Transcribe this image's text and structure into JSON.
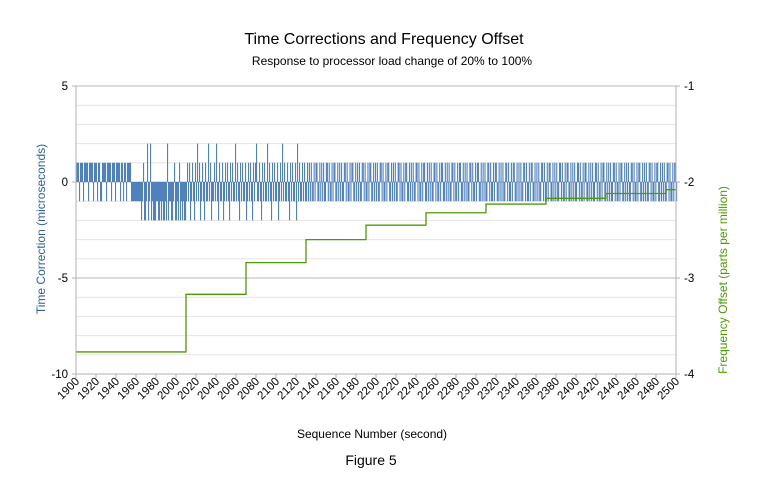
{
  "chart_data": {
    "type": "bar+line",
    "title": "Time Corrections and Frequency Offset",
    "subtitle": "Response to processor load change of 20% to 100%",
    "xlabel": "Sequence Number (second)",
    "ylabel_left": "Time Correction (microseconds)",
    "ylabel_right": "Frequency Offset (parts per million)",
    "caption": "Figure 5",
    "xlim": [
      1900,
      2500
    ],
    "ylim_left": [
      -10,
      5
    ],
    "ylim_right": [
      -4,
      -1
    ],
    "left_ticks": [
      5,
      0,
      -5,
      -10
    ],
    "right_ticks": [
      -1,
      -2,
      -3,
      -4
    ],
    "x_ticks": [
      1900,
      1920,
      1940,
      1960,
      1980,
      2000,
      2020,
      2040,
      2060,
      2080,
      2100,
      2120,
      2140,
      2160,
      2180,
      2200,
      2220,
      2240,
      2260,
      2280,
      2300,
      2320,
      2340,
      2360,
      2380,
      2400,
      2420,
      2440,
      2460,
      2480,
      2500
    ],
    "grid": true,
    "colors": {
      "time_correction": "#4f81bd",
      "frequency_offset": "#4e9a06",
      "grid": "#c0c0c0",
      "right_axis_title": "#4e9a06",
      "left_axis_title": "#2e5f98"
    },
    "series": [
      {
        "name": "Time Correction",
        "type": "bar",
        "axis": "left",
        "pattern_note_x": [
          1900,
          2500
        ],
        "segments": [
          {
            "start": 1900,
            "end": 1955,
            "values": [
              1,
              1,
              1,
              -1,
              1,
              1,
              1,
              -1,
              1,
              1,
              1,
              1,
              -1,
              1,
              1,
              1,
              1,
              -1,
              1,
              1,
              1,
              -1,
              1,
              1,
              -1,
              -1,
              1,
              1,
              1,
              1,
              -1,
              1,
              1,
              1,
              1,
              -1,
              1,
              1,
              1,
              -1,
              1,
              1,
              1,
              1,
              -1,
              1,
              1,
              -1,
              1,
              1,
              -1,
              1,
              1,
              1,
              1,
              -1
            ]
          },
          {
            "start": 1956,
            "end": 2010,
            "values": [
              -1,
              -1,
              -1,
              -1,
              -1,
              -1,
              -1,
              -1,
              -1,
              -2,
              -1,
              1,
              -2,
              -2,
              -1,
              2,
              -2,
              -1,
              2,
              -2,
              -1,
              -2,
              -2,
              -2,
              -1,
              -1,
              -2,
              -2,
              -1,
              -2,
              -1,
              -2,
              -2,
              -1,
              -2,
              2,
              -2,
              -1,
              -1,
              -2,
              -2,
              -1,
              1,
              -2,
              -2,
              -1,
              -2,
              1,
              -2,
              -1,
              -2,
              -1,
              -2,
              -2,
              -1
            ]
          },
          {
            "start": 2011,
            "end": 2130,
            "values": [
              1,
              -1,
              1,
              -2,
              -1,
              1,
              -1,
              -2,
              1,
              -1,
              2,
              -1,
              1,
              -2,
              -1,
              1,
              -1,
              -2,
              1,
              -1,
              -1,
              2,
              -1,
              1,
              -2,
              -1,
              -1,
              1,
              -1,
              2,
              -1,
              -2,
              1,
              -1,
              -1,
              1,
              -2,
              -1,
              1,
              -1,
              1,
              -1,
              -2,
              1,
              -1,
              1,
              -1,
              -1,
              2,
              -1,
              1,
              -1,
              -2,
              1,
              -1,
              1,
              -1,
              -1,
              1,
              -2,
              -1,
              1,
              -1,
              1,
              -1,
              -2,
              1,
              -1,
              1,
              2,
              -1,
              -1,
              1,
              -1,
              -2,
              1,
              -1,
              1,
              -1,
              -1,
              2,
              -1,
              1,
              -1,
              -2,
              1,
              -1,
              1,
              -1,
              -1,
              1,
              -2,
              -1,
              1,
              -1,
              2,
              -1,
              1,
              -1,
              -1,
              1,
              -1,
              -2,
              1,
              -1,
              1,
              -1,
              -1,
              1,
              -2,
              2,
              -1,
              1,
              -1,
              -1,
              1,
              -1,
              1,
              -1,
              -1
            ]
          },
          {
            "start": 2131,
            "end": 2500,
            "values": [
              1,
              -1,
              1,
              -1,
              1,
              -1,
              -1,
              1,
              -1,
              1,
              1,
              -1,
              -1,
              1,
              -1,
              1,
              -1,
              1,
              -1,
              -1,
              1,
              1,
              -1,
              1,
              -1,
              -1,
              1,
              -1,
              1,
              1,
              -1,
              -1,
              1,
              -1,
              1,
              -1,
              1,
              -1,
              -1,
              1,
              1,
              -1,
              1,
              -1,
              -1,
              1,
              -1,
              1,
              1,
              -1,
              -1,
              1,
              -1,
              1,
              -1,
              1,
              -1,
              -1,
              1,
              1,
              -1,
              1,
              -1,
              -1,
              1,
              -1,
              1,
              1,
              -1,
              -1,
              1,
              -1,
              1,
              -1,
              1,
              -1,
              -1,
              1,
              1,
              -1,
              1,
              -1,
              -1,
              1,
              -1,
              1,
              1,
              -1,
              -1,
              1,
              -1,
              1,
              -1,
              1,
              -1,
              -1,
              1,
              1,
              -1,
              1,
              -1,
              -1,
              1,
              -1,
              1,
              1,
              -1,
              -1,
              1,
              -1,
              1,
              -1,
              1,
              -1,
              -1,
              1,
              1,
              -1,
              1,
              -1,
              -1,
              1,
              -1,
              1,
              1,
              -1,
              -1,
              1,
              -1,
              1,
              -1,
              1,
              -1,
              -1,
              1,
              1,
              -1,
              1,
              -1,
              -1,
              1,
              -1,
              1,
              1,
              -1,
              -1,
              1,
              -1,
              1,
              -1,
              1,
              -1,
              -1,
              1,
              1,
              -1,
              1,
              -1,
              -1,
              1,
              -1,
              1,
              1,
              -1,
              -1,
              1,
              -1,
              1,
              -1,
              1,
              -1,
              -1,
              1,
              1,
              -1,
              1,
              -1,
              -1,
              1,
              -1,
              1,
              1,
              -1,
              -1,
              1,
              -1,
              1,
              -1,
              1,
              -1,
              -1,
              1,
              1,
              -1,
              1,
              -1,
              -1,
              1,
              -1,
              1,
              1,
              -1,
              -1,
              1,
              -1,
              1,
              -1,
              1,
              -1,
              -1,
              1,
              1,
              -1,
              1,
              -1,
              -1,
              1,
              -1,
              1,
              1,
              -1,
              -1,
              1,
              -1,
              1,
              -1,
              1,
              -1,
              -1,
              1,
              1,
              -1,
              1,
              -1,
              -1,
              1,
              -1,
              1,
              1,
              -1,
              -1,
              1,
              -1,
              1,
              -1,
              1,
              -1,
              -1,
              1,
              1,
              -1,
              1,
              -1,
              -1,
              1,
              -1,
              1,
              1,
              -1,
              -1,
              1,
              -1,
              1,
              -1,
              1,
              -1,
              -1,
              1,
              1,
              -1,
              1,
              -1,
              -1,
              1,
              -1,
              1,
              1,
              -1,
              -1,
              1,
              -1,
              1,
              -1,
              1,
              -1,
              -1,
              1,
              1,
              -1,
              1,
              -1,
              -1,
              1,
              -1,
              1,
              1,
              -1,
              -1,
              1,
              -1,
              1,
              -1,
              1,
              -1,
              -1,
              1,
              1,
              -1,
              1,
              -1,
              -1,
              1,
              -1,
              1,
              1,
              -1,
              -1,
              1,
              -1,
              1,
              -1,
              1,
              -1,
              -1,
              1,
              1,
              -1,
              1,
              -1,
              -1,
              1,
              -1,
              1,
              1,
              -1,
              -1,
              1,
              -1,
              1,
              -1,
              1,
              -1,
              -1,
              1,
              1,
              -1,
              1,
              -1,
              -1,
              1,
              -1,
              1,
              1,
              -1,
              -1,
              1,
              -1,
              1,
              -1,
              1,
              -1,
              -1,
              1,
              1,
              -1,
              1,
              -1,
              -1,
              1,
              -1,
              1,
              1,
              -1,
              -1,
              1,
              -1,
              1,
              -1,
              1,
              -1,
              -1,
              1,
              1,
              -1,
              1,
              -1,
              -1,
              1,
              -1,
              1,
              1,
              -1
            ]
          }
        ]
      },
      {
        "name": "Frequency Offset",
        "type": "step-line",
        "axis": "right",
        "points": [
          [
            1900,
            -3.77
          ],
          [
            2010,
            -3.77
          ],
          [
            2010,
            -3.17
          ],
          [
            2070,
            -3.17
          ],
          [
            2070,
            -2.84
          ],
          [
            2130,
            -2.84
          ],
          [
            2130,
            -2.6
          ],
          [
            2190,
            -2.6
          ],
          [
            2190,
            -2.45
          ],
          [
            2250,
            -2.45
          ],
          [
            2250,
            -2.32
          ],
          [
            2310,
            -2.32
          ],
          [
            2310,
            -2.23
          ],
          [
            2370,
            -2.23
          ],
          [
            2370,
            -2.17
          ],
          [
            2430,
            -2.17
          ],
          [
            2430,
            -2.12
          ],
          [
            2490,
            -2.12
          ],
          [
            2490,
            -2.08
          ],
          [
            2500,
            -2.08
          ]
        ]
      }
    ]
  }
}
